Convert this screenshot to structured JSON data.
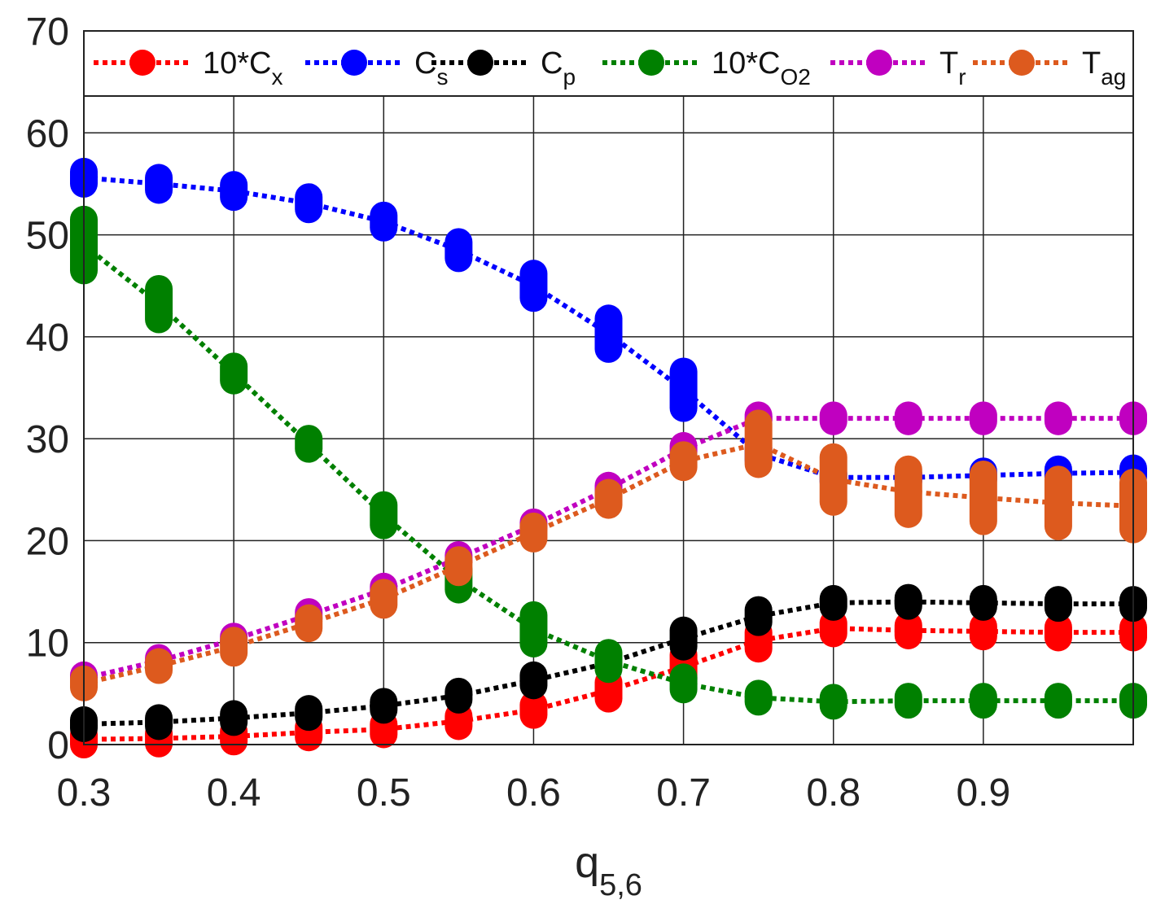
{
  "chart_data": {
    "type": "line",
    "xlabel": "q",
    "xlabel_sub": "5,6",
    "ylabel": "",
    "title": "",
    "xlim": [
      0.3,
      1.0
    ],
    "ylim": [
      0,
      70
    ],
    "xticks": [
      "0.3",
      "0.4",
      "0.5",
      "0.6",
      "0.7",
      "0.8",
      "0.9"
    ],
    "yticks": [
      "0",
      "10",
      "20",
      "30",
      "40",
      "50",
      "60",
      "70"
    ],
    "grid": true,
    "legend_position": "top",
    "x": [
      0.3,
      0.35,
      0.4,
      0.45,
      0.5,
      0.55,
      0.6,
      0.65,
      0.7,
      0.75,
      0.8,
      0.85,
      0.9,
      0.95,
      1.0
    ],
    "series": [
      {
        "name": "10*C",
        "subscript": "x",
        "color": "#ff0000",
        "values": [
          0.5,
          0.6,
          0.8,
          1.2,
          1.5,
          2.3,
          3.4,
          5.3,
          7.6,
          10.2,
          11.4,
          11.2,
          11.1,
          11.0,
          11.0
        ],
        "spread": [
          0.5,
          0.5,
          0.5,
          0.5,
          0.5,
          0.5,
          0.5,
          0.8,
          1.2,
          0.8,
          0.5,
          0.5,
          0.5,
          0.5,
          0.5
        ]
      },
      {
        "name": "C",
        "subscript": "s",
        "color": "#0000ff",
        "values": [
          55.6,
          55.0,
          54.3,
          53.1,
          51.3,
          48.5,
          45.0,
          40.3,
          34.8,
          28.5,
          26.2,
          26.2,
          26.4,
          26.6,
          26.7
        ],
        "spread": [
          0.6,
          0.6,
          0.6,
          0.6,
          0.6,
          0.8,
          1.2,
          1.5,
          1.8,
          0.6,
          0.4,
          0.4,
          0.4,
          0.4,
          0.4
        ]
      },
      {
        "name": "C",
        "subscript": "p",
        "color": "#000000",
        "values": [
          2.0,
          2.2,
          2.6,
          3.1,
          3.8,
          4.8,
          6.3,
          8.0,
          10.4,
          12.6,
          13.9,
          14.0,
          13.9,
          13.8,
          13.8
        ],
        "spread": [
          0.4,
          0.4,
          0.4,
          0.4,
          0.4,
          0.4,
          0.5,
          0.5,
          0.8,
          0.6,
          0.4,
          0.4,
          0.4,
          0.4,
          0.4
        ]
      },
      {
        "name": "10*C",
        "subscript": "O2",
        "color": "#008000",
        "values": [
          49.0,
          43.2,
          36.4,
          29.5,
          22.5,
          16.2,
          11.3,
          8.2,
          6.0,
          4.6,
          4.2,
          4.3,
          4.3,
          4.3,
          4.3
        ],
        "spread": [
          2.5,
          1.5,
          0.7,
          0.5,
          1.0,
          1.0,
          1.4,
          0.8,
          0.6,
          0.4,
          0.4,
          0.4,
          0.4,
          0.4,
          0.4
        ]
      },
      {
        "name": "T",
        "subscript": "r",
        "color": "#c000c0",
        "values": [
          6.5,
          8.2,
          10.3,
          12.7,
          15.2,
          18.3,
          21.5,
          25.1,
          29.0,
          32.0,
          32.0,
          32.0,
          32.0,
          32.0,
          32.0
        ],
        "spread": [
          0.3,
          0.3,
          0.3,
          0.3,
          0.3,
          0.3,
          0.3,
          0.3,
          0.3,
          0.3,
          0.3,
          0.3,
          0.3,
          0.3,
          0.3
        ]
      },
      {
        "name": "T",
        "subscript": "ag",
        "color": "#dd5a1e",
        "values": [
          6.0,
          7.7,
          9.6,
          11.9,
          14.3,
          17.5,
          20.8,
          24.1,
          27.8,
          29.5,
          26.0,
          24.8,
          24.2,
          23.7,
          23.4
        ],
        "spread": [
          0.4,
          0.4,
          0.6,
          0.5,
          0.6,
          0.6,
          0.6,
          0.6,
          0.6,
          2.0,
          2.2,
          2.2,
          2.3,
          2.3,
          2.3
        ]
      }
    ]
  }
}
